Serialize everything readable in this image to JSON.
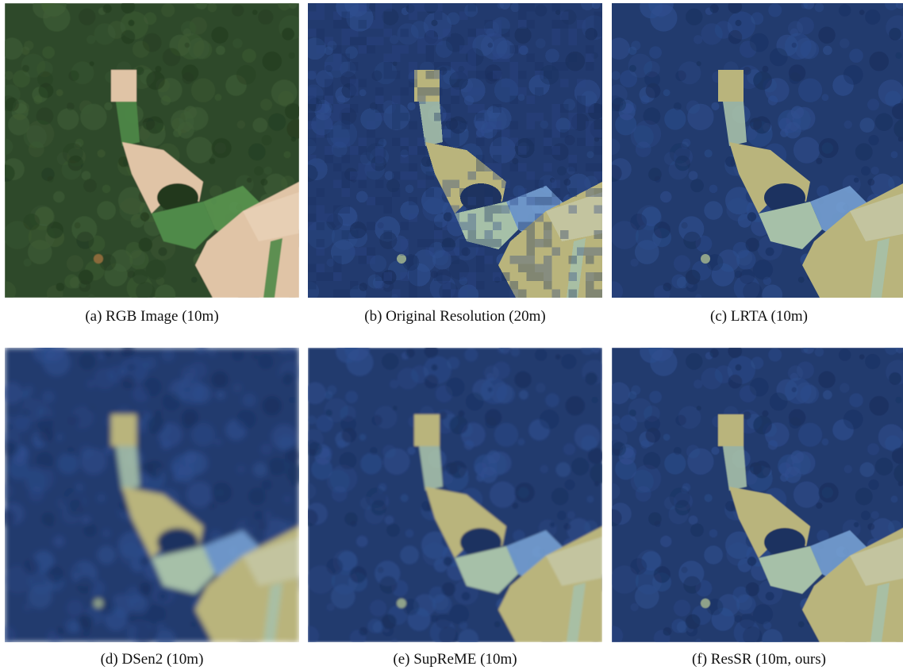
{
  "figure": {
    "panels": [
      {
        "id": "a",
        "caption": "(a) RGB Image (10m)",
        "palette": "rgb",
        "blur": 0.6
      },
      {
        "id": "b",
        "caption": "(b) Original Resolution (20m)",
        "palette": "false",
        "blur": 0.0,
        "pixelated": true
      },
      {
        "id": "c",
        "caption": "(c) LRTA (10m)",
        "palette": "false",
        "blur": 0.3
      },
      {
        "id": "d",
        "caption": "(d) DSen2 (10m)",
        "palette": "false",
        "blur": 3.5
      },
      {
        "id": "e",
        "caption": "(e) SupReME (10m)",
        "palette": "false",
        "blur": 1.4
      },
      {
        "id": "f",
        "caption": "(f) ResSR (10m, ours)",
        "palette": "false",
        "blur": 0.4
      }
    ],
    "colors": {
      "rgb_forest": "#2f4a2a",
      "rgb_forest_light": "#3f5e36",
      "rgb_field": "#e0c4a6",
      "rgb_green_field": "#4f8a48",
      "fc_forest": "#223a6e",
      "fc_forest_light": "#2f4f8f",
      "fc_field": "#b9b47c",
      "fc_strip": "#a6c0a8",
      "fc_bright": "#7aa6d8"
    }
  }
}
